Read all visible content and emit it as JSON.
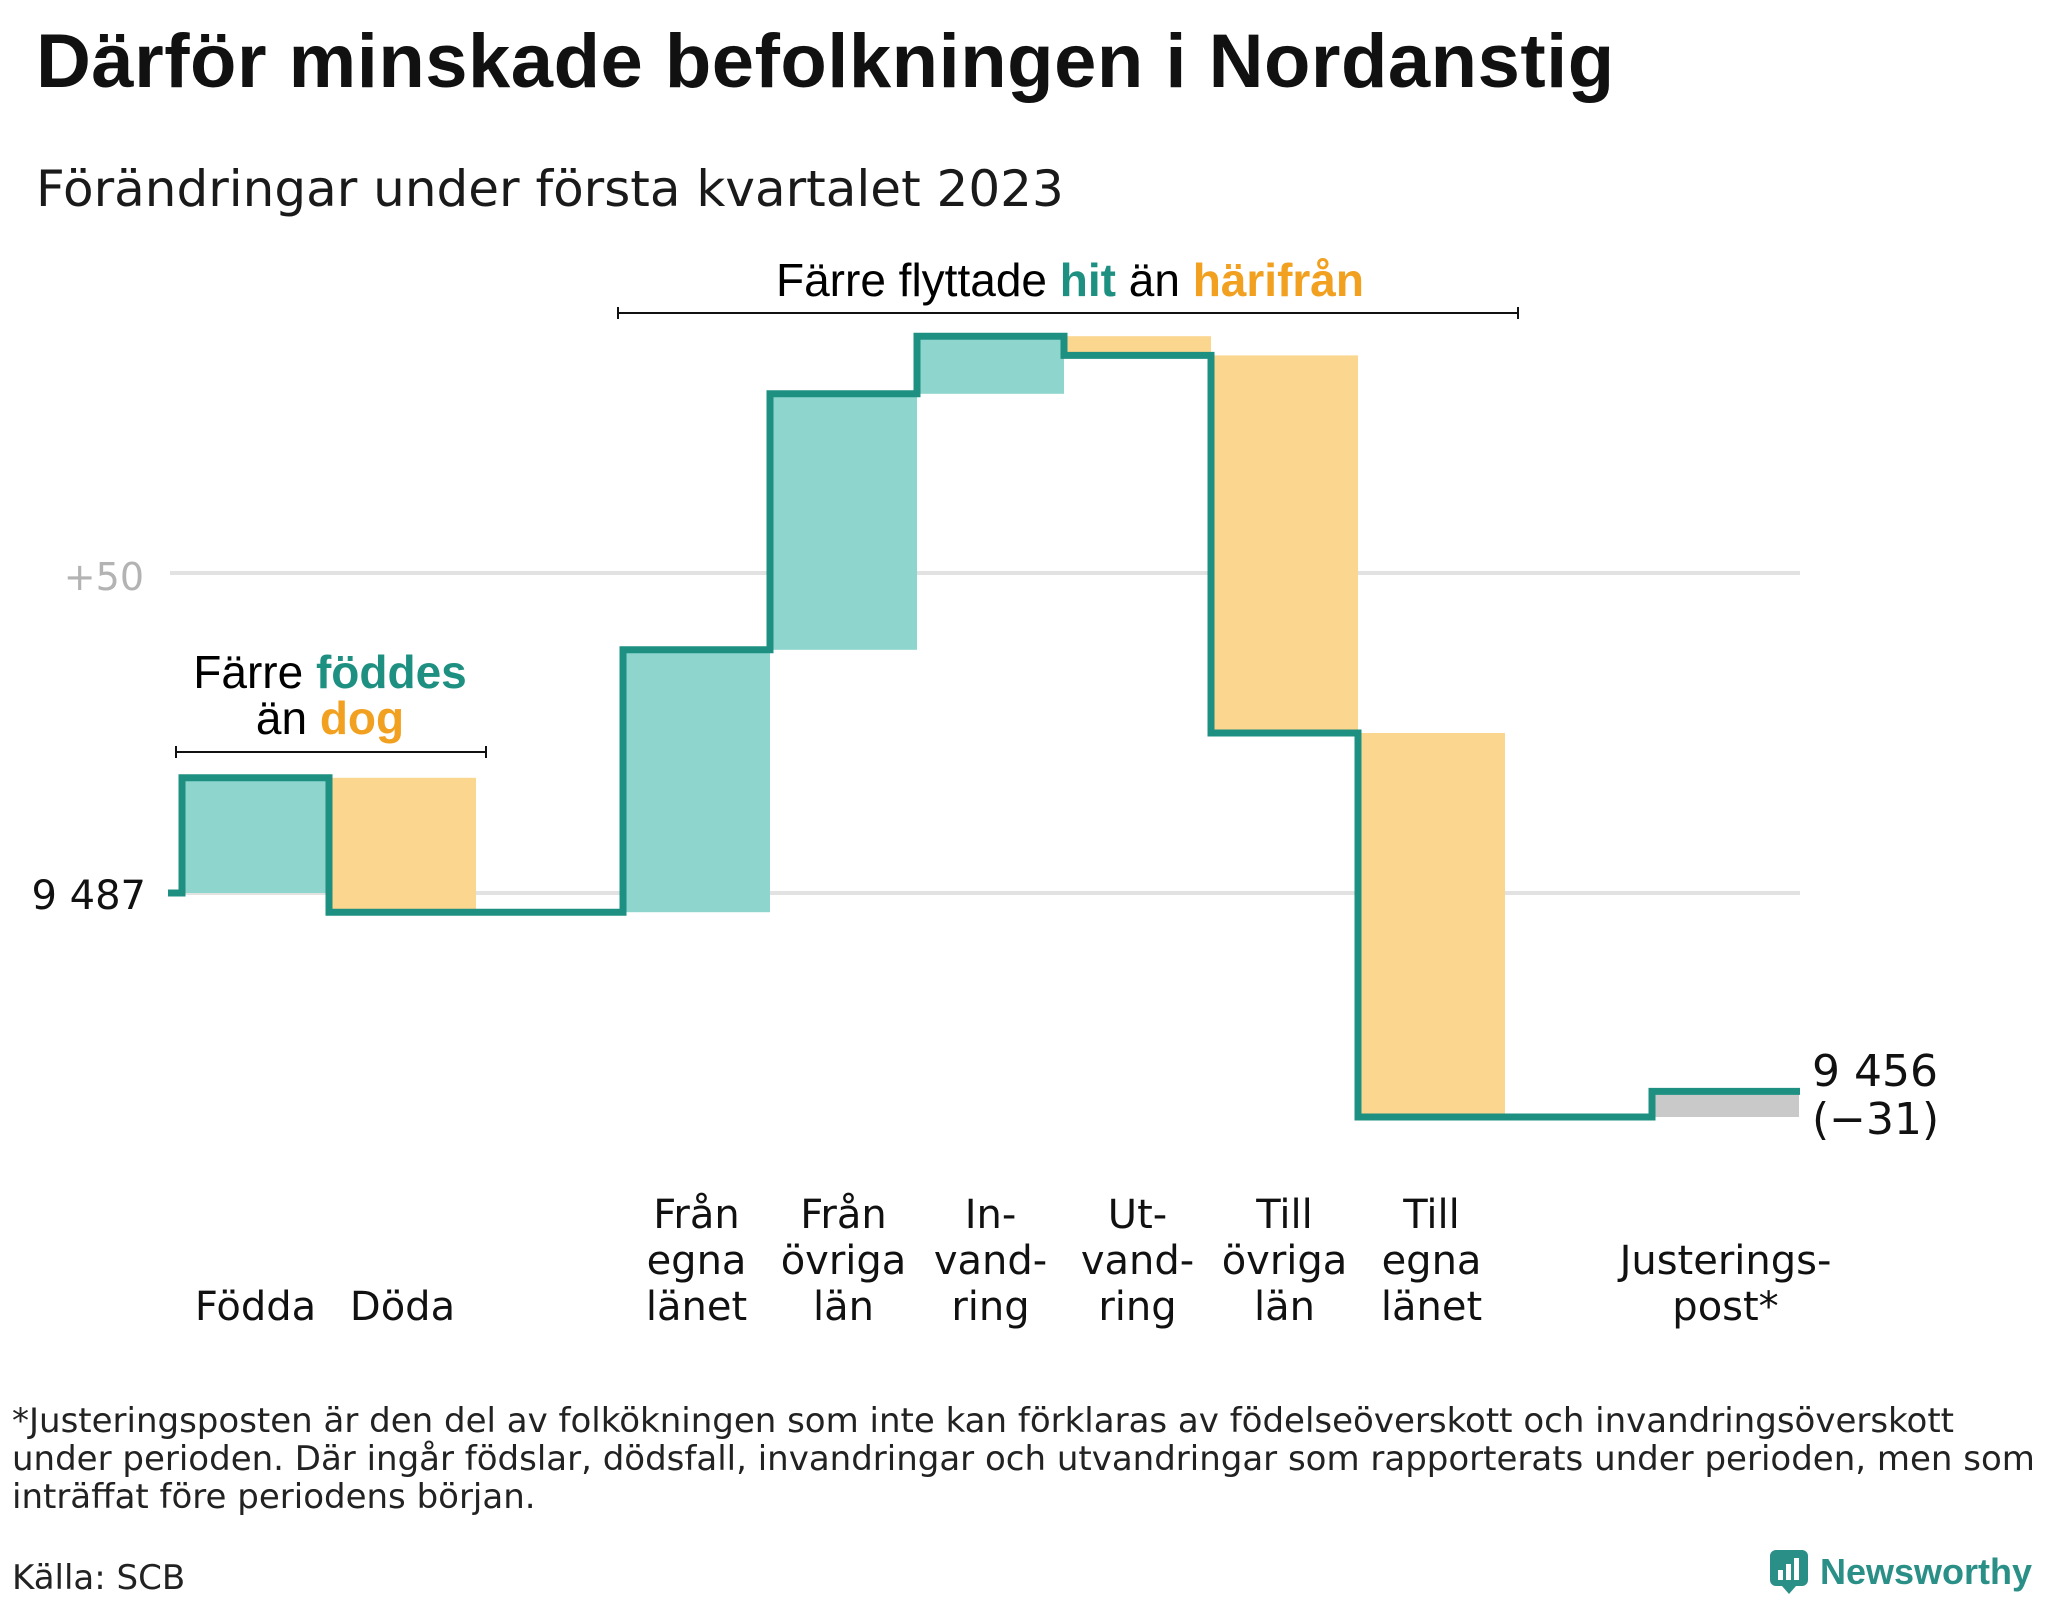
{
  "title": "Därför minskade befolkningen i Nordanstig",
  "subtitle": "Förändringar under första kvartalet 2023",
  "chart_data": {
    "type": "waterfall",
    "start_value": 9487,
    "start_label": "9 487",
    "end_value": 9456,
    "end_label": "9 456",
    "end_change_label": "(−31)",
    "gridline_label": "+50",
    "gridline_value": 9537,
    "steps": [
      {
        "label_lines": [
          "Födda"
        ],
        "value": 18,
        "kind": "in"
      },
      {
        "label_lines": [
          "Döda"
        ],
        "value": -21,
        "kind": "out"
      },
      {
        "label_lines": [
          "Från",
          "egna",
          "länet"
        ],
        "value": 41,
        "kind": "in",
        "group_gap_before": true
      },
      {
        "label_lines": [
          "Från",
          "övriga",
          "län"
        ],
        "value": 40,
        "kind": "in"
      },
      {
        "label_lines": [
          "In-",
          "vand-",
          "ring"
        ],
        "value": 9,
        "kind": "in"
      },
      {
        "label_lines": [
          "Ut-",
          "vand-",
          "ring"
        ],
        "value": -3,
        "kind": "out"
      },
      {
        "label_lines": [
          "Till",
          "övriga",
          "län"
        ],
        "value": -59,
        "kind": "out"
      },
      {
        "label_lines": [
          "Till",
          "egna",
          "länet"
        ],
        "value": -60,
        "kind": "out"
      },
      {
        "label_lines": [
          "Justerings-",
          "post*"
        ],
        "value": 4,
        "kind": "adjust",
        "group_gap_before": true
      }
    ],
    "colors": {
      "line": "#1e9082",
      "in_fill": "#8dd5cd",
      "out_fill": "#fbd68e",
      "adjust_fill": "#c9c9c9",
      "grid": "#e2e2e2",
      "teal_text": "#1e9082",
      "orange_text": "#f1a020"
    },
    "annotations": {
      "births": {
        "prefix": "Färre ",
        "highlight1": "föddes",
        "middle": "än ",
        "highlight2": "dog"
      },
      "moves": {
        "prefix": "Färre flyttade ",
        "highlight1": "hit",
        "middle": " än ",
        "highlight2": "härifrån"
      }
    }
  },
  "footnote": "*Justeringsposten är den del av folkökningen som inte kan förklaras av födelseöverskott och invandringsöverskott under perioden. Där ingår födslar, dödsfall, invandringar och utvandringar som rapporterats under perioden, men som inträffat före periodens början.",
  "source": "Källa: SCB",
  "brand": "Newsworthy"
}
